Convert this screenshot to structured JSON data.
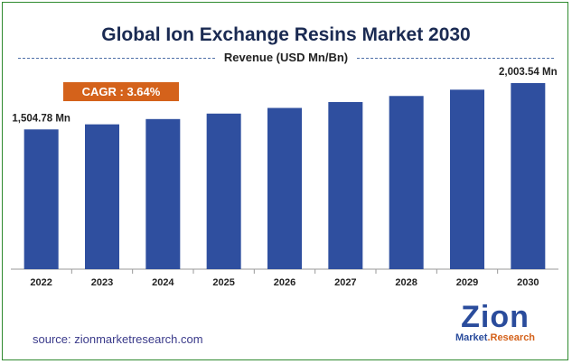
{
  "source": "source: zionmarketresearch.com",
  "logo": {
    "word": "Zion",
    "market": "Market",
    "research": ".Research"
  },
  "chart_data": {
    "type": "bar",
    "title": "Global Ion Exchange Resins Market 2030",
    "subtitle": "Revenue (USD Mn/Bn)",
    "cagr_label": "CAGR : 3.64%",
    "categories": [
      "2022",
      "2023",
      "2024",
      "2025",
      "2026",
      "2027",
      "2028",
      "2029",
      "2030"
    ],
    "values": [
      1504.78,
      1559.5,
      1616.3,
      1675.1,
      1736.1,
      1799.3,
      1864.8,
      1932.7,
      2003.54
    ],
    "data_labels": {
      "2022": "1,504.78 Mn",
      "2030": "2,003.54 Mn"
    },
    "bar_color": "#2f4f9f",
    "ylim": [
      0,
      2003.54
    ],
    "grid": false,
    "legend": "none"
  }
}
